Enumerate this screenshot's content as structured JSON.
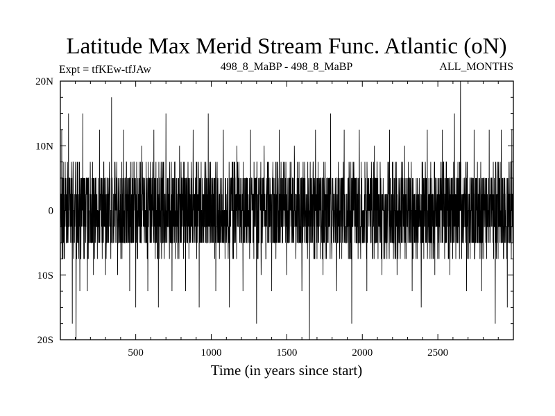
{
  "chart_data": {
    "type": "line",
    "title": "Latitude Max Merid Stream Func. Atlantic (oN)",
    "subtitle_left": "Expt = tfKEw-tfJAw",
    "subtitle_center": "498_8_MaBP - 498_8_MaBP",
    "subtitle_right": "ALL_MONTHS",
    "xlabel": "Time (in years since start)",
    "ylabel": "",
    "xlim": [
      1,
      3000
    ],
    "ylim": [
      -20,
      20
    ],
    "x_ticks": [
      500,
      1000,
      1500,
      2000,
      2500
    ],
    "x_tick_labels": [
      "500",
      "1000",
      "1500",
      "2000",
      "2500"
    ],
    "y_ticks": [
      20,
      10,
      0,
      -10,
      -20
    ],
    "y_tick_labels": [
      "20N",
      "10N",
      "0",
      "10S",
      "20S"
    ],
    "grid": false,
    "legend": "none",
    "line_color": "#000000",
    "series": [
      {
        "values_note_levels": [
          -20,
          -17.5,
          -15,
          -12.5,
          -10,
          -7.5,
          -5,
          -2.5,
          0,
          2.5,
          5,
          7.5,
          10,
          12.5,
          15,
          17.5,
          20
        ],
        "band_typical": [
          -5,
          5
        ],
        "band_frequent": [
          -7.5,
          7.5
        ],
        "spikes": [
          {
            "x": 10,
            "y": 12.5
          },
          {
            "x": 25,
            "y": -7.5
          },
          {
            "x": 55,
            "y": 15
          },
          {
            "x": 80,
            "y": -17.5
          },
          {
            "x": 105,
            "y": -20
          },
          {
            "x": 130,
            "y": -12.5
          },
          {
            "x": 150,
            "y": 15
          },
          {
            "x": 180,
            "y": -12.5
          },
          {
            "x": 220,
            "y": -10
          },
          {
            "x": 260,
            "y": 12.5
          },
          {
            "x": 300,
            "y": -10
          },
          {
            "x": 340,
            "y": 17.5
          },
          {
            "x": 380,
            "y": -10
          },
          {
            "x": 420,
            "y": 12.5
          },
          {
            "x": 460,
            "y": -12.5
          },
          {
            "x": 500,
            "y": -15
          },
          {
            "x": 540,
            "y": 10
          },
          {
            "x": 580,
            "y": -12.5
          },
          {
            "x": 620,
            "y": 12.5
          },
          {
            "x": 650,
            "y": -15
          },
          {
            "x": 700,
            "y": 15
          },
          {
            "x": 740,
            "y": -12.5
          },
          {
            "x": 790,
            "y": 10
          },
          {
            "x": 830,
            "y": -12.5
          },
          {
            "x": 880,
            "y": 12.5
          },
          {
            "x": 920,
            "y": -15
          },
          {
            "x": 980,
            "y": 15
          },
          {
            "x": 1030,
            "y": -12.5
          },
          {
            "x": 1080,
            "y": 12.5
          },
          {
            "x": 1120,
            "y": -15
          },
          {
            "x": 1170,
            "y": 10
          },
          {
            "x": 1210,
            "y": -12.5
          },
          {
            "x": 1260,
            "y": 12.5
          },
          {
            "x": 1300,
            "y": -17.5
          },
          {
            "x": 1330,
            "y": -10
          },
          {
            "x": 1350,
            "y": 10
          },
          {
            "x": 1400,
            "y": -12.5
          },
          {
            "x": 1450,
            "y": 12.5
          },
          {
            "x": 1500,
            "y": -10
          },
          {
            "x": 1550,
            "y": 10
          },
          {
            "x": 1600,
            "y": -12.5
          },
          {
            "x": 1650,
            "y": -20
          },
          {
            "x": 1690,
            "y": 12.5
          },
          {
            "x": 1740,
            "y": -10
          },
          {
            "x": 1790,
            "y": 15
          },
          {
            "x": 1830,
            "y": -12.5
          },
          {
            "x": 1880,
            "y": 12.5
          },
          {
            "x": 1930,
            "y": -17.5
          },
          {
            "x": 1980,
            "y": 12.5
          },
          {
            "x": 2030,
            "y": -12.5
          },
          {
            "x": 2080,
            "y": 10
          },
          {
            "x": 2130,
            "y": -10
          },
          {
            "x": 2180,
            "y": 12.5
          },
          {
            "x": 2230,
            "y": -10
          },
          {
            "x": 2280,
            "y": 10
          },
          {
            "x": 2330,
            "y": -12.5
          },
          {
            "x": 2390,
            "y": -15
          },
          {
            "x": 2430,
            "y": 12.5
          },
          {
            "x": 2480,
            "y": -10
          },
          {
            "x": 2530,
            "y": 12.5
          },
          {
            "x": 2580,
            "y": -10
          },
          {
            "x": 2610,
            "y": 15
          },
          {
            "x": 2650,
            "y": 20
          },
          {
            "x": 2690,
            "y": -12.5
          },
          {
            "x": 2740,
            "y": 12.5
          },
          {
            "x": 2790,
            "y": -12.5
          },
          {
            "x": 2840,
            "y": 12.5
          },
          {
            "x": 2880,
            "y": -17.5
          },
          {
            "x": 2920,
            "y": 12.5
          },
          {
            "x": 2960,
            "y": -15
          },
          {
            "x": 2990,
            "y": 12.5
          }
        ]
      }
    ]
  }
}
